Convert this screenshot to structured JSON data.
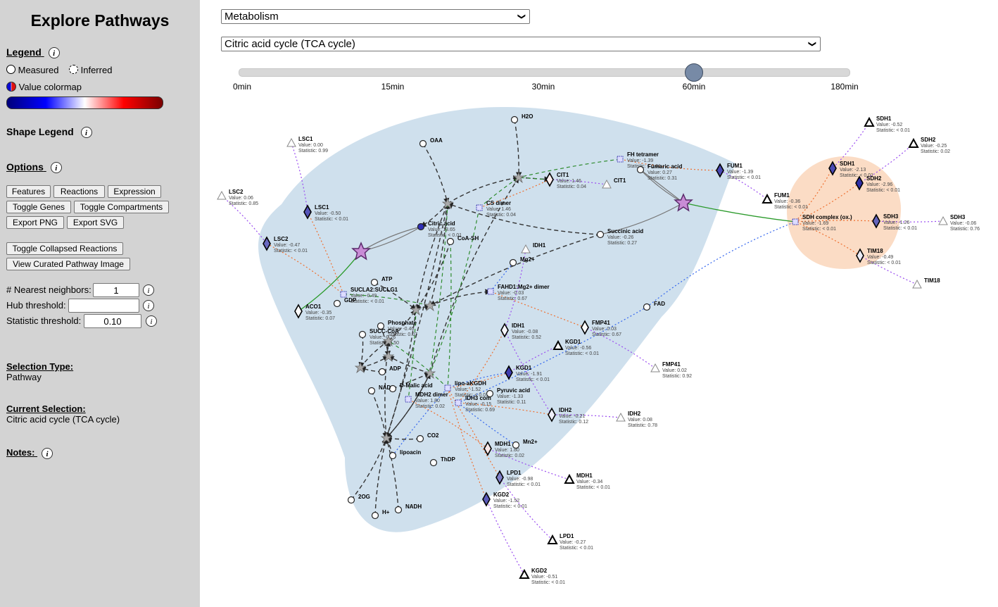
{
  "sidebar": {
    "title": "Explore Pathways",
    "legend_label": "Legend",
    "measured_label": "Measured",
    "inferred_label": "Inferred",
    "colormap_label": "Value colormap",
    "shape_legend_label": "Shape Legend",
    "options_label": "Options",
    "buttons": {
      "features": "Features",
      "reactions": "Reactions",
      "expression": "Expression",
      "toggle_genes": "Toggle Genes",
      "toggle_compartments": "Toggle Compartments",
      "export_png": "Export PNG",
      "export_svg": "Export SVG",
      "toggle_collapsed": "Toggle Collapsed Reactions",
      "view_curated": "View Curated Pathway Image"
    },
    "nearest_label": "# Nearest neighbors:",
    "nearest_value": "1",
    "hub_label": "Hub threshold:",
    "hub_value": "",
    "stat_label": "Statistic threshold:",
    "stat_value": "0.10",
    "selection_type_label": "Selection Type:",
    "selection_type_value": "Pathway",
    "current_selection_label": "Current Selection:",
    "current_selection_value": "Citric acid cycle (TCA cycle)",
    "notes_label": "Notes:",
    "info_glyph": "i"
  },
  "top": {
    "category": "Metabolism",
    "pathway": "Citric acid cycle (TCA cycle)",
    "timepoints": [
      "0min",
      "15min",
      "30min",
      "60min",
      "180min"
    ],
    "selected_timepoint": "60min"
  },
  "colors": {
    "compartment_blue": "#cfe0ed",
    "compartment_orange": "#fbdcc5",
    "hub_star": "#c98cd6",
    "dashed_black": "#333333",
    "dashed_green": "#2e8b2e",
    "dotted_orange": "#ef7030",
    "dotted_blue": "#3366ee",
    "dotted_purple": "#9a4cf0",
    "gene_fill": "#7f7fc4"
  },
  "network": {
    "measured_nodes": [
      {
        "label": "LSC1",
        "value": "Value: -0.50",
        "stat": "Statistic: < 0.01"
      },
      {
        "label": "LSC2",
        "value": "Value: -0.47",
        "stat": "Statistic: < 0.01"
      },
      {
        "label": "ACO1",
        "value": "Value: -0.35",
        "stat": "Statistic: 0.07"
      },
      {
        "label": "CIT1",
        "value": "Value: 1.46",
        "stat": "Statistic: 0.04"
      },
      {
        "label": "FUM1",
        "value": "Value: -1.39",
        "stat": "Statistic: < 0.01"
      },
      {
        "label": "KGD1",
        "value": "Value: -1.91",
        "stat": "Statistic: < 0.01"
      },
      {
        "label": "MDH1",
        "value": "Value: 1.80",
        "stat": "Statistic: 0.02"
      },
      {
        "label": "LPD1",
        "value": "Value: -0.98",
        "stat": "Statistic: < 0.01"
      },
      {
        "label": "KGD2",
        "value": "Value: -1.52",
        "stat": "Statistic: < 0.01"
      },
      {
        "label": "SDH1",
        "value": "Value: -2.13",
        "stat": "Statistic: < 0.01"
      },
      {
        "label": "SDH2",
        "value": "Value: -2.96",
        "stat": "Statistic: < 0.01"
      },
      {
        "label": "SDH3",
        "value": "Value: -1.26",
        "stat": "Statistic: < 0.01"
      },
      {
        "label": "TIM18",
        "value": "Value: -0.49",
        "stat": "Statistic: < 0.01"
      },
      {
        "label": "IDH1",
        "value": "Value: -0.08",
        "stat": "Statistic: 0.52"
      },
      {
        "label": "IDH2",
        "value": "Value: -0.21",
        "stat": "Statistic: 0.12"
      },
      {
        "label": "FMP41",
        "value": "Value: 0.03",
        "stat": "Statistic: 0.67"
      }
    ],
    "inferred_nodes": [
      {
        "label": "LSC1",
        "value": "Value: 0.00",
        "stat": "Statistic: 0.99"
      },
      {
        "label": "LSC2",
        "value": "Value: 0.06",
        "stat": "Statistic: 0.85"
      },
      {
        "label": "SDH1",
        "value": "Value: -0.52",
        "stat": "Statistic: < 0.01"
      },
      {
        "label": "SDH2",
        "value": "Value: -0.25",
        "stat": "Statistic: 0.02"
      },
      {
        "label": "SDH3",
        "value": "Value: -0.06",
        "stat": "Statistic: 0.76"
      },
      {
        "label": "TIM18",
        "value": "",
        "stat": ""
      },
      {
        "label": "FUM1",
        "value": "Value: -0.36",
        "stat": "Statistic: < 0.01"
      },
      {
        "label": "KGD1",
        "value": "Value: -0.56",
        "stat": "Statistic: < 0.01"
      },
      {
        "label": "FMP41",
        "value": "Value: 0.02",
        "stat": "Statistic: 0.92"
      },
      {
        "label": "IDH2",
        "value": "Value: 0.08",
        "stat": "Statistic: 0.78"
      },
      {
        "label": "MDH1",
        "value": "Value: -0.34",
        "stat": "Statistic: < 0.01"
      },
      {
        "label": "LPD1",
        "value": "Value: -0.27",
        "stat": "Statistic: < 0.01"
      },
      {
        "label": "KGD2",
        "value": "Value: -0.51",
        "stat": "Statistic: < 0.01"
      },
      {
        "label": "IDH1",
        "value": "",
        "stat": ""
      },
      {
        "label": "CIT1",
        "value": "",
        "stat": ""
      }
    ],
    "complexes": [
      {
        "label": "FH tetramer",
        "value": "Value: -1.39",
        "stat": "Statistic: < 0.01"
      },
      {
        "label": "CS dimer",
        "value": "Value: 1.46",
        "stat": "Statistic: 0.04"
      },
      {
        "label": "SDH complex (ox.)",
        "value": "Value: -1.69",
        "stat": "Statistic: < 0.01"
      },
      {
        "label": "FAHD1:Mg2+ dimer",
        "value": "Value: -0.03",
        "stat": "Statistic: 0.67"
      },
      {
        "label": "SUCLA2:SUCLG1",
        "value": "Value: -0.49",
        "stat": "Statistic: < 0.01"
      },
      {
        "label": "lipo-aKGDH",
        "value": "Value: -1.52",
        "stat": "Statistic: < 0.01"
      },
      {
        "label": "MDH2 dimer",
        "value": "Value: 1.80",
        "stat": "Statistic: 0.02"
      },
      {
        "label": "IDH3 com",
        "value": "Value: -0.15",
        "stat": "Statistic: 0.69"
      }
    ],
    "metabolites": [
      {
        "label": "Citric acid",
        "value": "Value: 13.65",
        "stat": "Statistic: < 0.01"
      },
      {
        "label": "Fumaric acid",
        "value": "Value: 0.27",
        "stat": "Statistic: 0.31"
      },
      {
        "label": "Succinic acid",
        "value": "Value: -0.26",
        "stat": "Statistic: 0.27"
      },
      {
        "label": "Phosphate",
        "value": "Value: -0.46",
        "stat": "Statistic: 0.07"
      },
      {
        "label": "SUCC-CoA",
        "value": "Value: -0.26",
        "stat": "Statistic: 0.50"
      },
      {
        "label": "D-Malic acid",
        "value": "",
        "stat": ""
      },
      {
        "label": "Pyruvic acid",
        "value": "Value: -1.33",
        "stat": "Statistic: 0.11"
      },
      {
        "label": "H2O",
        "value": "",
        "stat": ""
      },
      {
        "label": "OAA",
        "value": "",
        "stat": ""
      },
      {
        "label": "CoA-SH",
        "value": "",
        "stat": ""
      },
      {
        "label": "Mg2+",
        "value": "",
        "stat": ""
      },
      {
        "label": "ATP",
        "value": "",
        "stat": ""
      },
      {
        "label": "ADP",
        "value": "",
        "stat": ""
      },
      {
        "label": "NAD",
        "value": "",
        "stat": ""
      },
      {
        "label": "CO2",
        "value": "",
        "stat": ""
      },
      {
        "label": "lipoacin",
        "value": "",
        "stat": ""
      },
      {
        "label": "ThDP",
        "value": "",
        "stat": ""
      },
      {
        "label": "2OG",
        "value": "",
        "stat": ""
      },
      {
        "label": "H+",
        "value": "",
        "stat": ""
      },
      {
        "label": "NADH",
        "value": "",
        "stat": ""
      },
      {
        "label": "Mn2+",
        "value": "",
        "stat": ""
      },
      {
        "label": "FAD",
        "value": "",
        "stat": ""
      },
      {
        "label": "GDP",
        "value": "",
        "stat": ""
      }
    ]
  }
}
